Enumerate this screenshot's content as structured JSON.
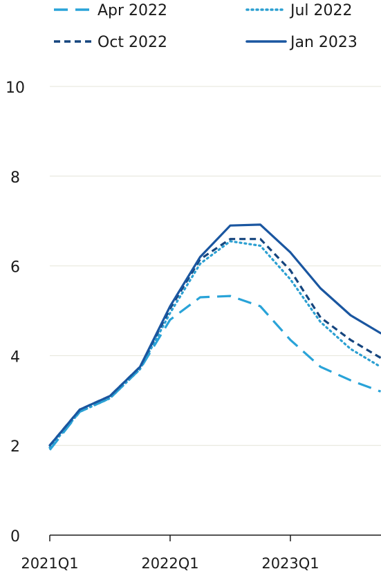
{
  "chart_data": {
    "type": "line",
    "title": "",
    "xlabel": "",
    "ylabel": "",
    "x": [
      "2021Q1",
      "2021Q2",
      "2021Q3",
      "2021Q4",
      "2022Q1",
      "2022Q2",
      "2022Q3",
      "2022Q4",
      "2023Q1",
      "2023Q2",
      "2023Q3",
      "2023Q4"
    ],
    "x_tick_labels": [
      "2021Q1",
      "2022Q1",
      "2023Q1"
    ],
    "ylim": [
      0,
      10
    ],
    "y_ticks": [
      "0",
      "2",
      "4",
      "6",
      "8",
      "10"
    ],
    "grid": true,
    "legend_position": "top",
    "series": [
      {
        "name": "Apr 2022",
        "style": "long-dash",
        "color": "#29a3d8",
        "values": [
          1.9,
          2.75,
          3.05,
          3.7,
          4.8,
          5.3,
          5.33,
          5.1,
          4.35,
          3.75,
          3.45,
          3.2
        ]
      },
      {
        "name": "Jul 2022",
        "style": "dotted",
        "color": "#2b9fd1",
        "values": [
          1.95,
          2.75,
          3.05,
          3.7,
          4.95,
          6.05,
          6.55,
          6.45,
          5.7,
          4.75,
          4.15,
          3.75
        ]
      },
      {
        "name": "Oct 2022",
        "style": "short-dash",
        "color": "#15457e",
        "values": [
          2.0,
          2.8,
          3.1,
          3.75,
          5.05,
          6.15,
          6.6,
          6.6,
          5.9,
          4.85,
          4.35,
          3.95
        ]
      },
      {
        "name": "Jan 2023",
        "style": "solid",
        "color": "#1a56a0",
        "values": [
          2.0,
          2.8,
          3.1,
          3.75,
          5.1,
          6.2,
          6.9,
          6.92,
          6.3,
          5.5,
          4.9,
          4.5
        ]
      }
    ]
  }
}
